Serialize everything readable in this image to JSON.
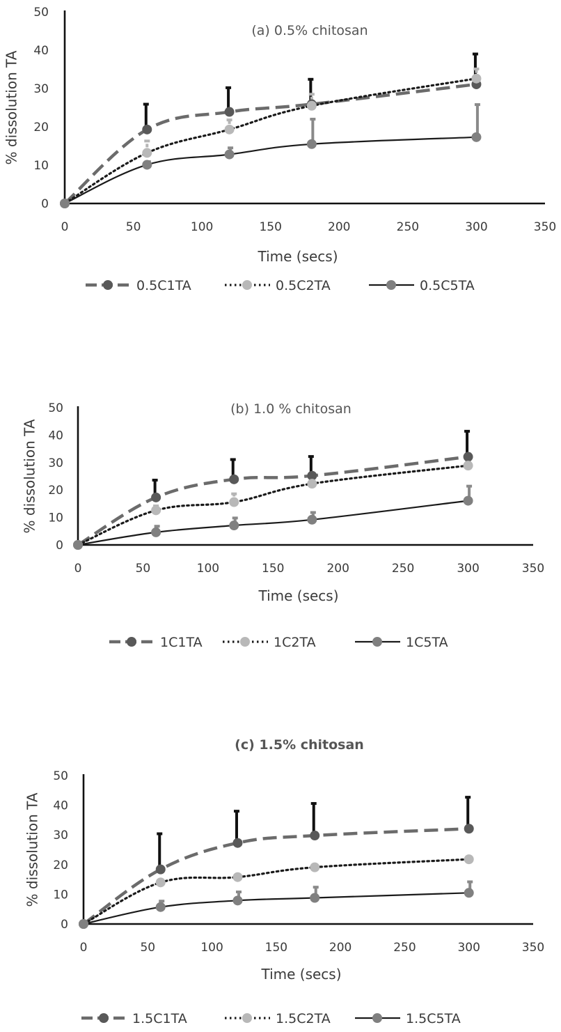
{
  "chart_data": [
    {
      "type": "line",
      "title": "(a) 0.5% chitosan",
      "xlabel": "Time (secs)",
      "ylabel": "% dissolution TA",
      "xlim": [
        0,
        350
      ],
      "ylim": [
        0,
        50
      ],
      "xticks": [
        "0",
        "50",
        "100",
        "150",
        "200",
        "250",
        "300",
        "350"
      ],
      "yticks": [
        "0",
        "10",
        "20",
        "30",
        "40",
        "50"
      ],
      "grid": false,
      "legend": "bottom",
      "x": [
        0,
        60,
        120,
        180,
        300
      ],
      "series": [
        {
          "name": "0.5C1TA",
          "values": [
            0,
            19.3,
            23.9,
            25.9,
            31.1
          ],
          "error": [
            0,
            6.6,
            6.3,
            6.5,
            7.9
          ],
          "color": "#6b6b6b",
          "marker": "#595959",
          "style": "dashed"
        },
        {
          "name": "0.5C2TA",
          "values": [
            0,
            13.2,
            19.3,
            25.5,
            32.6
          ],
          "error": [
            0,
            3.1,
            2.5,
            3.0,
            2.5
          ],
          "color": "#1a1a1a",
          "marker": "#b8b8b8",
          "style": "dotted"
        },
        {
          "name": "0.5C5TA",
          "values": [
            0,
            10.1,
            12.8,
            15.5,
            17.3
          ],
          "error": [
            0,
            0.8,
            1.7,
            6.5,
            8.5
          ],
          "color": "#1a1a1a",
          "marker": "#808080",
          "style": "solid"
        }
      ]
    },
    {
      "type": "line",
      "title": "(b) 1.0 % chitosan",
      "xlabel": "Time (secs)",
      "ylabel": "% dissolution TA",
      "xlim": [
        0,
        350
      ],
      "ylim": [
        0,
        50
      ],
      "xticks": [
        "0",
        "50",
        "100",
        "150",
        "200",
        "250",
        "300",
        "350"
      ],
      "yticks": [
        "0",
        "10",
        "20",
        "30",
        "40",
        "50"
      ],
      "grid": false,
      "legend": "bottom",
      "x": [
        0,
        60,
        120,
        180,
        300
      ],
      "series": [
        {
          "name": "1C1TA",
          "values": [
            0,
            17.3,
            23.9,
            25.2,
            32.1
          ],
          "error": [
            0,
            6.3,
            7.2,
            7.0,
            9.3
          ],
          "color": "#6b6b6b",
          "marker": "#595959",
          "style": "dashed"
        },
        {
          "name": "1C2TA",
          "values": [
            0,
            12.6,
            15.6,
            22.3,
            28.9
          ],
          "error": [
            0,
            1.6,
            3.0,
            1.7,
            1.6
          ],
          "color": "#1a1a1a",
          "marker": "#b8b8b8",
          "style": "dotted"
        },
        {
          "name": "1C5TA",
          "values": [
            0,
            4.6,
            7.1,
            9.2,
            16.1
          ],
          "error": [
            0,
            2.2,
            2.7,
            2.6,
            5.3
          ],
          "color": "#1a1a1a",
          "marker": "#808080",
          "style": "solid"
        }
      ]
    },
    {
      "type": "line",
      "title": "(c) 1.5% chitosan",
      "xlabel": "Time (secs)",
      "ylabel": "% dissolution TA",
      "xlim": [
        0,
        350
      ],
      "ylim": [
        0,
        50
      ],
      "xticks": [
        "0",
        "50",
        "100",
        "150",
        "200",
        "250",
        "300",
        "350"
      ],
      "yticks": [
        "0",
        "10",
        "20",
        "30",
        "40",
        "50"
      ],
      "grid": false,
      "legend": "bottom",
      "x": [
        0,
        60,
        120,
        180,
        300
      ],
      "series": [
        {
          "name": "1.5C1TA",
          "values": [
            0,
            18.4,
            27.3,
            29.8,
            32.1
          ],
          "error": [
            0,
            12.0,
            10.7,
            10.8,
            10.6
          ],
          "color": "#6b6b6b",
          "marker": "#595959",
          "style": "dashed"
        },
        {
          "name": "1.5C2TA",
          "values": [
            0,
            14.0,
            15.8,
            19.1,
            21.8
          ],
          "error": [
            0,
            0.6,
            0.7,
            0.7,
            0.4
          ],
          "color": "#1a1a1a",
          "marker": "#b8b8b8",
          "style": "dotted"
        },
        {
          "name": "1.5C5TA",
          "values": [
            0,
            5.7,
            7.9,
            8.8,
            10.5
          ],
          "error": [
            0,
            2.0,
            2.9,
            3.6,
            3.7
          ],
          "color": "#1a1a1a",
          "marker": "#808080",
          "style": "solid"
        }
      ]
    }
  ]
}
